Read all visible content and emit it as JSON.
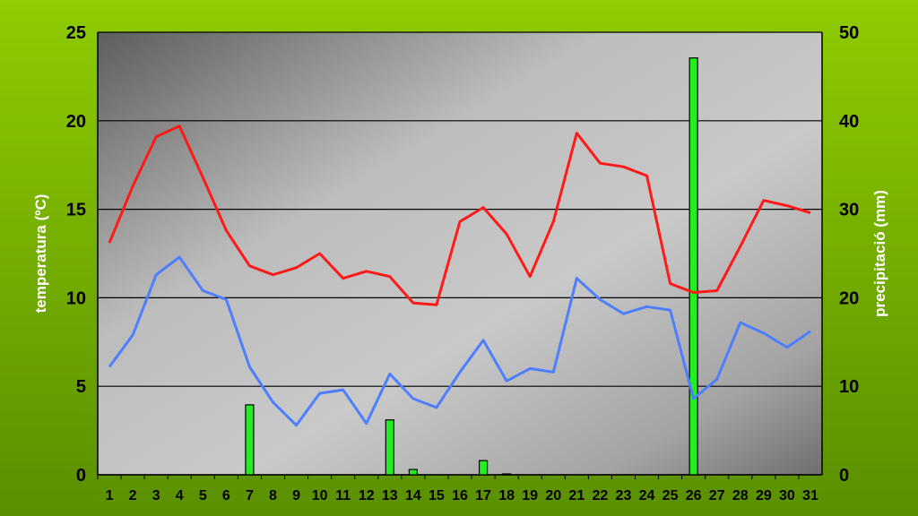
{
  "chart_data": {
    "type": "line+bar",
    "title": "",
    "ylabel_left": "temperatura (ºC)",
    "ylabel_right": "precipitació (mm)",
    "x": [
      "1",
      "2",
      "3",
      "4",
      "5",
      "6",
      "7",
      "8",
      "9",
      "10",
      "11",
      "12",
      "13",
      "14",
      "15",
      "16",
      "17",
      "18",
      "19",
      "20",
      "21",
      "22",
      "23",
      "24",
      "25",
      "26",
      "27",
      "28",
      "29",
      "30",
      "31"
    ],
    "y_left_lim": [
      0,
      25
    ],
    "y_left_ticks": [
      "0",
      "5",
      "10",
      "15",
      "20",
      "25"
    ],
    "y_right_lim": [
      0,
      50
    ],
    "y_right_ticks": [
      "0",
      "10",
      "20",
      "30",
      "40",
      "50"
    ],
    "grid": true,
    "series": [
      {
        "kind": "line",
        "axis": "left",
        "color": "#ff1a1a",
        "values": [
          13.1,
          16.3,
          19.1,
          19.7,
          16.8,
          13.8,
          11.8,
          11.3,
          11.7,
          12.5,
          11.1,
          11.5,
          11.2,
          9.7,
          9.6,
          14.3,
          15.1,
          13.6,
          11.2,
          14.3,
          19.3,
          17.6,
          17.4,
          16.9,
          10.8,
          10.3,
          10.4,
          12.9,
          15.5,
          15.2,
          14.8
        ]
      },
      {
        "kind": "line",
        "axis": "left",
        "color": "#4d7fff",
        "values": [
          6.1,
          7.9,
          11.3,
          12.3,
          10.4,
          9.9,
          6.1,
          4.1,
          2.8,
          4.6,
          4.8,
          2.9,
          5.7,
          4.3,
          3.8,
          5.8,
          7.6,
          5.3,
          6.0,
          5.8,
          11.1,
          9.9,
          9.1,
          9.5,
          9.3,
          4.3,
          5.4,
          8.6,
          8.0,
          7.2,
          8.1
        ]
      },
      {
        "kind": "bar",
        "axis": "right",
        "color": "#22ee22",
        "values": [
          0,
          0,
          0,
          0,
          0,
          0,
          7.9,
          0,
          0,
          0,
          0,
          0,
          6.2,
          0.6,
          0,
          0,
          1.6,
          0.1,
          0,
          0,
          0,
          0,
          0,
          0,
          0,
          47.1,
          0,
          0,
          0,
          0,
          0
        ]
      }
    ]
  }
}
